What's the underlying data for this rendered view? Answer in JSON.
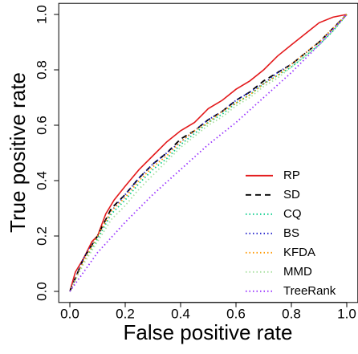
{
  "chart_data": {
    "type": "line",
    "xlabel": "False positive rate",
    "ylabel": "True positive rate",
    "xlim": [
      0,
      1
    ],
    "ylim": [
      0,
      1
    ],
    "xticks": [
      {
        "value": 0,
        "label": "0.0"
      },
      0.2,
      0.4,
      0.6,
      0.8,
      {
        "value": 1,
        "label": "1.0"
      }
    ],
    "yticks": [
      {
        "value": 0,
        "label": "0.0"
      },
      0.2,
      0.4,
      0.6,
      0.8,
      {
        "value": 1,
        "label": "1.0"
      }
    ],
    "legend": "bottomright",
    "series": [
      {
        "name": "RP",
        "color": "#e31a1c",
        "linestyle": "solid",
        "x": [
          0,
          0.02,
          0.05,
          0.08,
          0.1,
          0.13,
          0.16,
          0.2,
          0.25,
          0.3,
          0.35,
          0.4,
          0.45,
          0.5,
          0.55,
          0.6,
          0.65,
          0.7,
          0.75,
          0.8,
          0.85,
          0.9,
          0.95,
          1
        ],
        "values": [
          0,
          0.07,
          0.12,
          0.18,
          0.2,
          0.28,
          0.33,
          0.38,
          0.44,
          0.49,
          0.54,
          0.58,
          0.61,
          0.66,
          0.69,
          0.73,
          0.76,
          0.8,
          0.85,
          0.89,
          0.93,
          0.97,
          0.99,
          1
        ]
      },
      {
        "name": "SD",
        "color": "#000000",
        "linestyle": "dashed",
        "x": [
          0,
          0.05,
          0.1,
          0.15,
          0.2,
          0.25,
          0.3,
          0.35,
          0.4,
          0.45,
          0.5,
          0.55,
          0.6,
          0.65,
          0.7,
          0.75,
          0.8,
          0.85,
          0.9,
          0.95,
          1
        ],
        "values": [
          0,
          0.12,
          0.2,
          0.3,
          0.35,
          0.41,
          0.46,
          0.5,
          0.55,
          0.58,
          0.62,
          0.65,
          0.69,
          0.72,
          0.76,
          0.79,
          0.82,
          0.86,
          0.9,
          0.95,
          1
        ]
      },
      {
        "name": "CQ",
        "color": "#00cc88",
        "linestyle": "dotted",
        "x": [
          0,
          0.05,
          0.1,
          0.15,
          0.2,
          0.25,
          0.3,
          0.35,
          0.4,
          0.45,
          0.5,
          0.55,
          0.6,
          0.65,
          0.7,
          0.75,
          0.8,
          0.85,
          0.9,
          0.95,
          1
        ],
        "values": [
          0,
          0.11,
          0.19,
          0.28,
          0.33,
          0.39,
          0.44,
          0.48,
          0.53,
          0.57,
          0.61,
          0.64,
          0.68,
          0.71,
          0.75,
          0.78,
          0.81,
          0.85,
          0.89,
          0.94,
          1
        ]
      },
      {
        "name": "BS",
        "color": "#2222cc",
        "linestyle": "dotted",
        "x": [
          0,
          0.05,
          0.1,
          0.15,
          0.2,
          0.25,
          0.3,
          0.35,
          0.4,
          0.45,
          0.5,
          0.55,
          0.6,
          0.65,
          0.7,
          0.75,
          0.8,
          0.85,
          0.9,
          0.95,
          1
        ],
        "values": [
          0,
          0.12,
          0.2,
          0.29,
          0.35,
          0.41,
          0.46,
          0.5,
          0.54,
          0.58,
          0.62,
          0.65,
          0.69,
          0.72,
          0.75,
          0.79,
          0.82,
          0.86,
          0.9,
          0.95,
          1
        ]
      },
      {
        "name": "KFDA",
        "color": "#ff9900",
        "linestyle": "dotted",
        "x": [
          0,
          0.05,
          0.1,
          0.15,
          0.2,
          0.25,
          0.3,
          0.35,
          0.4,
          0.45,
          0.5,
          0.55,
          0.6,
          0.65,
          0.7,
          0.75,
          0.8,
          0.85,
          0.9,
          0.95,
          1
        ],
        "values": [
          0,
          0.11,
          0.2,
          0.29,
          0.34,
          0.4,
          0.45,
          0.49,
          0.54,
          0.58,
          0.61,
          0.65,
          0.68,
          0.71,
          0.75,
          0.78,
          0.82,
          0.86,
          0.9,
          0.95,
          1
        ]
      },
      {
        "name": "MMD",
        "color": "#a8e0a0",
        "linestyle": "dotted",
        "x": [
          0,
          0.05,
          0.1,
          0.15,
          0.2,
          0.25,
          0.3,
          0.35,
          0.4,
          0.45,
          0.5,
          0.55,
          0.6,
          0.65,
          0.7,
          0.75,
          0.8,
          0.85,
          0.9,
          0.95,
          1
        ],
        "values": [
          0,
          0.1,
          0.18,
          0.26,
          0.31,
          0.37,
          0.42,
          0.47,
          0.52,
          0.56,
          0.6,
          0.63,
          0.67,
          0.7,
          0.74,
          0.77,
          0.81,
          0.85,
          0.89,
          0.94,
          1
        ]
      },
      {
        "name": "TreeRank",
        "color": "#9933ff",
        "linestyle": "dotted",
        "x": [
          0,
          0.1,
          0.2,
          0.3,
          0.4,
          0.5,
          0.6,
          0.7,
          0.8,
          0.9,
          1
        ],
        "values": [
          0,
          0.14,
          0.25,
          0.35,
          0.44,
          0.53,
          0.61,
          0.7,
          0.79,
          0.89,
          1
        ]
      }
    ]
  }
}
